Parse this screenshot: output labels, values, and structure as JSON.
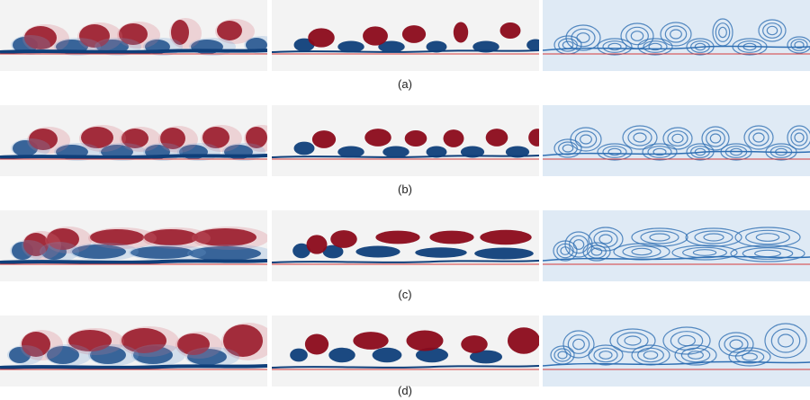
{
  "figure": {
    "rows": [
      {
        "caption": "(a)"
      },
      {
        "caption": "(b)"
      },
      {
        "caption": "(c)"
      },
      {
        "caption": "(d)"
      }
    ],
    "colors": {
      "positive_vorticity": "#8b0a1a",
      "negative_vorticity": "#0f3f7a",
      "background": "#f3f3f3",
      "contour_background": "#dfeaf5",
      "contour_line": "#2f6fb3",
      "wall_line": "#d43a3a"
    }
  }
}
